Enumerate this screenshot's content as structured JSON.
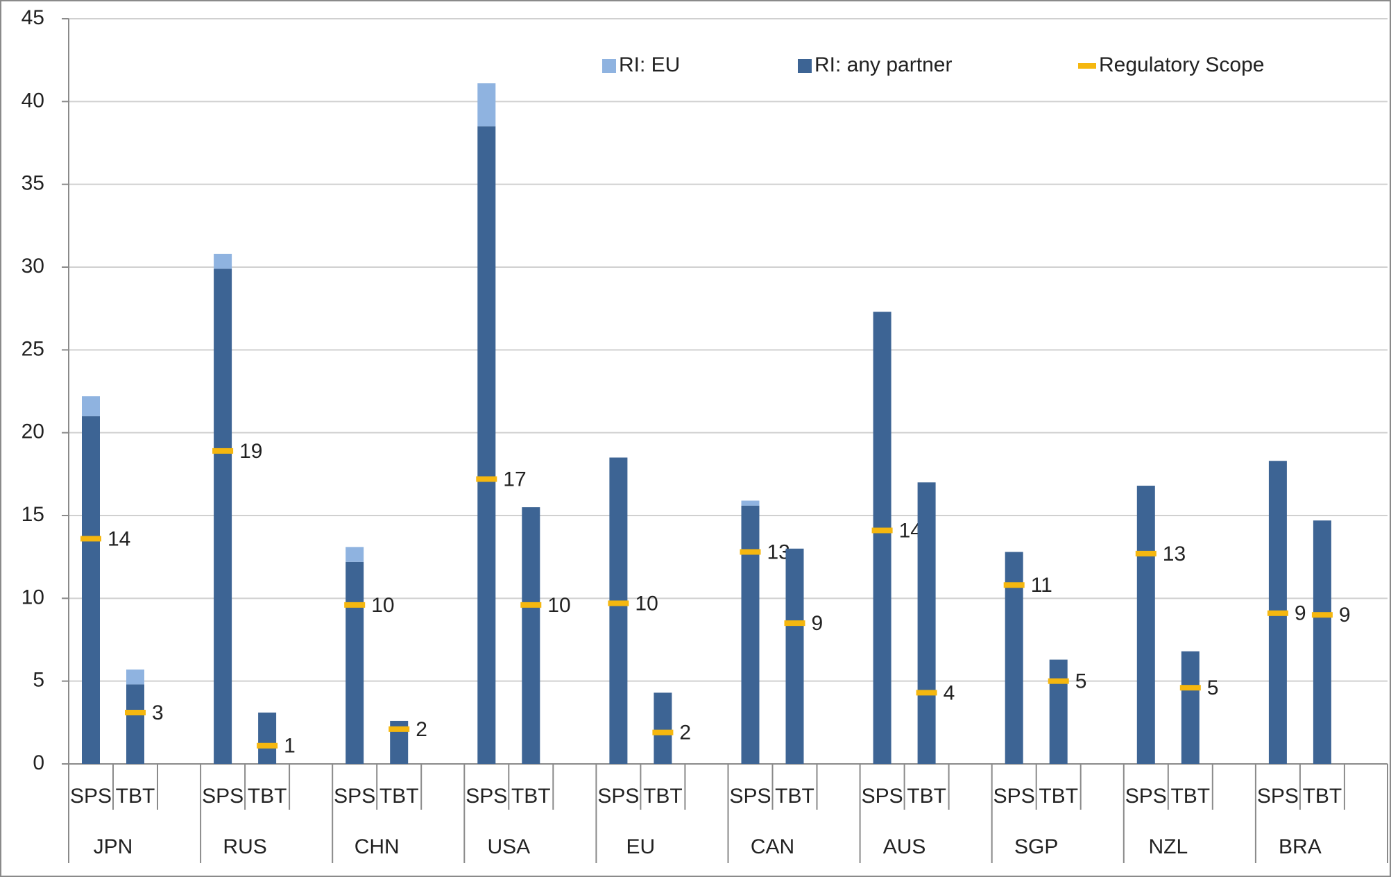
{
  "chart_data": {
    "type": "bar",
    "groups": [
      "JPN",
      "RUS",
      "CHN",
      "USA",
      "EU",
      "CAN",
      "AUS",
      "SGP",
      "NZL",
      "BRA"
    ],
    "categories": [
      "SPS",
      "TBT",
      "SPS",
      "TBT",
      "SPS",
      "TBT",
      "SPS",
      "TBT",
      "SPS",
      "TBT",
      "SPS",
      "TBT",
      "SPS",
      "TBT",
      "SPS",
      "TBT",
      "SPS",
      "TBT",
      "SPS",
      "TBT"
    ],
    "series": [
      {
        "name": "RI: EU",
        "color": "#8fb3e0",
        "kind": "stacked-top",
        "values": [
          1.2,
          0.9,
          0.9,
          0,
          0.9,
          0,
          2.6,
          0,
          0,
          0,
          0.3,
          0,
          0,
          0,
          0,
          0,
          0,
          0,
          0,
          0
        ]
      },
      {
        "name": "RI: any partner",
        "color": "#3d6494",
        "kind": "stacked-base",
        "values": [
          21.0,
          4.8,
          29.9,
          3.1,
          12.2,
          2.6,
          38.5,
          15.5,
          18.5,
          4.3,
          15.6,
          13.0,
          27.3,
          17.0,
          12.8,
          6.3,
          16.8,
          6.8,
          18.3,
          14.7
        ]
      },
      {
        "name": "Regulatory Scope",
        "color": "#f5b70f",
        "kind": "marker",
        "values": [
          13.6,
          3.1,
          18.9,
          1.1,
          9.6,
          2.1,
          17.2,
          9.6,
          9.7,
          1.9,
          12.8,
          8.5,
          14.1,
          4.3,
          10.8,
          5.0,
          12.7,
          4.6,
          9.1,
          9.0
        ],
        "value_labels": [
          "14",
          "3",
          "19",
          "1",
          "10",
          "2",
          "17",
          "10",
          "10",
          "2",
          "13",
          "9",
          "14",
          "4",
          "11",
          "5",
          "13",
          "5",
          "9",
          "9"
        ]
      }
    ],
    "ylim": [
      0,
      45
    ],
    "yticks": [
      0,
      5,
      10,
      15,
      20,
      25,
      30,
      35,
      40,
      45
    ],
    "grid": true,
    "legend": "top"
  }
}
